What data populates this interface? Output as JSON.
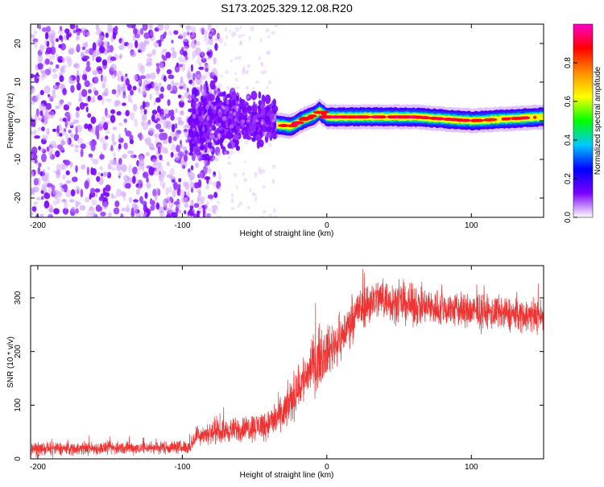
{
  "figure_title": "S173.2025.329.12.08.R20",
  "colorbar": {
    "label": "Normalized spectral amplitude",
    "ticks": [
      "0.0",
      "0.2",
      "0.4",
      "0.6",
      "0.8"
    ],
    "tick_values": [
      0.0,
      0.2,
      0.4,
      0.6,
      0.8
    ],
    "range": [
      0,
      1
    ],
    "colors": [
      "#ffffff",
      "#7b00ff",
      "#0000ff",
      "#00c8ff",
      "#00ff00",
      "#ffff00",
      "#ff8c00",
      "#ff0000",
      "#ff00c8"
    ]
  },
  "chart_data": [
    {
      "type": "heatmap",
      "title": "S173.2025.329.12.08.R20",
      "xlabel": "Height of straight line (km)",
      "ylabel": "Frequency (Hz)",
      "xlim": [
        -205,
        150
      ],
      "ylim": [
        -25,
        25
      ],
      "xticks": [
        -200,
        -100,
        0,
        100
      ],
      "xtick_labels": [
        "-200",
        "-100",
        "0",
        "100"
      ],
      "yticks": [
        -20,
        -10,
        0,
        10,
        20
      ],
      "ytick_labels": [
        "-20",
        "-10",
        "0",
        "10",
        "20"
      ],
      "regions": [
        {
          "name": "diffuse scatter",
          "x_range": [
            -205,
            -95
          ],
          "freq_range": [
            -25,
            25
          ],
          "amplitude": 0.1
        },
        {
          "name": "transition cluster",
          "x_range": [
            -95,
            -35
          ],
          "freq_range": [
            -12,
            12
          ],
          "amplitude": 0.15
        },
        {
          "name": "narrow band",
          "x_range": [
            -35,
            150
          ],
          "center_freq_hz": 0.8,
          "width_hz": 2,
          "peak_amplitude": 0.95
        }
      ],
      "band_center": {
        "x": [
          -35,
          -25,
          -15,
          -8,
          -5,
          0,
          20,
          60,
          100,
          150
        ],
        "y": [
          -1,
          -1.5,
          0.5,
          1.5,
          2.5,
          1,
          1,
          1,
          0,
          1
        ]
      }
    },
    {
      "type": "line",
      "xlabel": "Height of straight line (km)",
      "ylabel": "SNR (10 * v/v)",
      "xlim": [
        -205,
        150
      ],
      "ylim": [
        0,
        360
      ],
      "xticks": [
        -200,
        -100,
        0,
        100
      ],
      "xtick_labels": [
        "-200",
        "-100",
        "0",
        "100"
      ],
      "yticks": [
        0,
        100,
        200,
        300
      ],
      "ytick_labels": [
        "0",
        "100",
        "200",
        "300"
      ],
      "color": "#ee3333",
      "trend": {
        "x": [
          -205,
          -150,
          -95,
          -90,
          -60,
          -40,
          -30,
          -20,
          -10,
          0,
          10,
          20,
          35,
          60,
          100,
          150
        ],
        "y": [
          18,
          20,
          22,
          45,
          55,
          65,
          85,
          130,
          175,
          200,
          225,
          275,
          300,
          285,
          275,
          265
        ]
      },
      "noise_amplitude": [
        12,
        12,
        12,
        18,
        22,
        28,
        35,
        45,
        50,
        45,
        40,
        40,
        38,
        35,
        32,
        30
      ]
    }
  ]
}
